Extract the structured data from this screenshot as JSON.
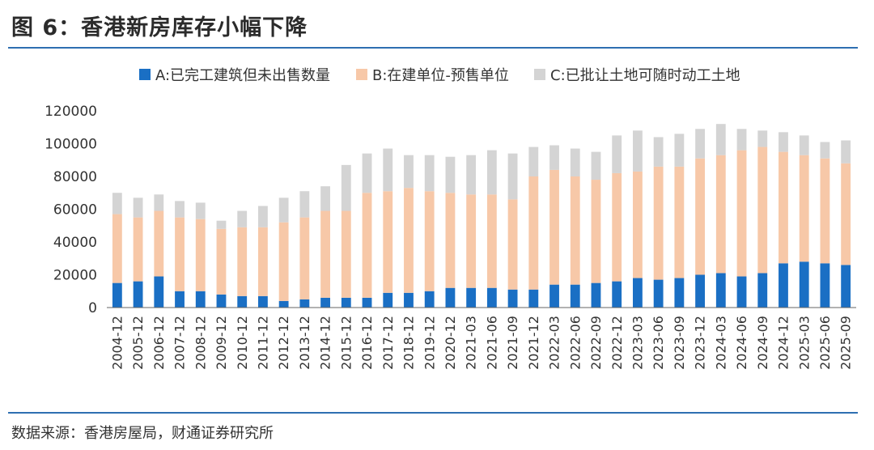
{
  "figure": {
    "title": "图 6：香港新房库存小幅下降",
    "source": "数据来源：香港房屋局，财通证券研究所"
  },
  "chart_data": {
    "type": "bar",
    "stacked": true,
    "title": "",
    "xlabel": "",
    "ylabel": "",
    "ylim": [
      0,
      120000
    ],
    "yticks": [
      0,
      20000,
      40000,
      60000,
      80000,
      100000,
      120000
    ],
    "legend_position": "top",
    "categories": [
      "2004-12",
      "2005-12",
      "2006-12",
      "2007-12",
      "2008-12",
      "2009-12",
      "2010-12",
      "2011-12",
      "2012-12",
      "2013-12",
      "2014-12",
      "2015-12",
      "2016-12",
      "2017-12",
      "2018-12",
      "2019-12",
      "2020-12",
      "2021-03",
      "2021-06",
      "2021-09",
      "2021-12",
      "2022-03",
      "2022-06",
      "2022-09",
      "2022-12",
      "2023-03",
      "2023-06",
      "2023-09",
      "2023-12",
      "2024-03",
      "2024-06",
      "2024-09",
      "2024-12",
      "2025-03",
      "2025-06",
      "2025-09"
    ],
    "series": [
      {
        "name": "A:已完工建筑但未出售数量",
        "color": "#1a6fc4",
        "values": [
          15000,
          16000,
          19000,
          10000,
          10000,
          8000,
          7000,
          7000,
          4000,
          5000,
          6000,
          6000,
          6000,
          9000,
          9000,
          10000,
          12000,
          12000,
          12000,
          11000,
          11000,
          14000,
          14000,
          15000,
          16000,
          18000,
          17000,
          18000,
          20000,
          21000,
          19000,
          21000,
          27000,
          28000,
          27000,
          26000
        ]
      },
      {
        "name": "B:在建单位-预售单位",
        "color": "#f7c8a8",
        "values": [
          42000,
          39000,
          40000,
          45000,
          44000,
          40000,
          42000,
          42000,
          48000,
          50000,
          53000,
          53000,
          64000,
          62000,
          64000,
          61000,
          58000,
          57000,
          57000,
          55000,
          69000,
          70000,
          66000,
          63000,
          66000,
          65000,
          69000,
          68000,
          71000,
          72000,
          77000,
          77000,
          68000,
          65000,
          64000,
          62000
        ]
      },
      {
        "name": "C:已批让土地可随时动工土地",
        "color": "#d4d4d4",
        "values": [
          13000,
          12000,
          10000,
          10000,
          10000,
          5000,
          10000,
          13000,
          15000,
          16000,
          15000,
          28000,
          24000,
          26000,
          20000,
          22000,
          22000,
          24000,
          27000,
          28000,
          18000,
          15000,
          17000,
          17000,
          23000,
          25000,
          18000,
          20000,
          18000,
          19000,
          13000,
          10000,
          12000,
          12000,
          10000,
          14000
        ]
      }
    ]
  }
}
